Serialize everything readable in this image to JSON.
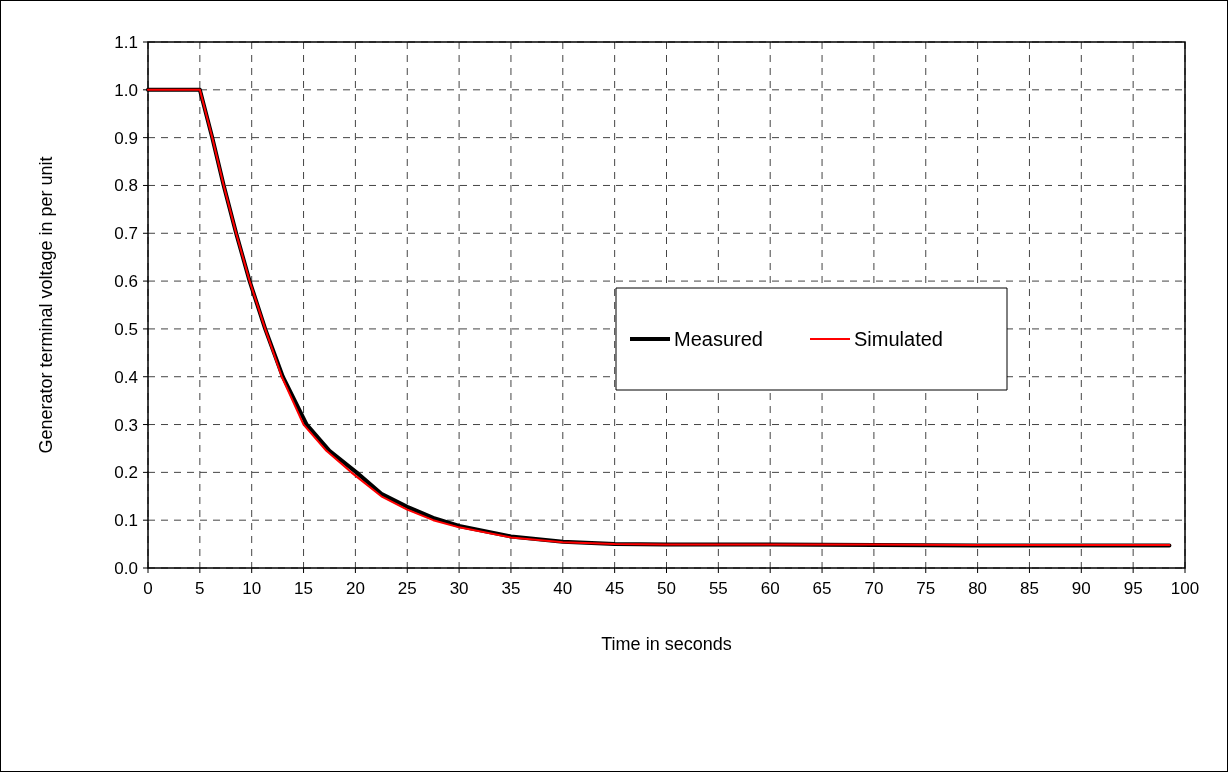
{
  "chart_data": {
    "type": "line",
    "xlabel": "Time in seconds",
    "ylabel": "Generator terminal voltage in per unit",
    "xlim": [
      0,
      100
    ],
    "ylim": [
      0,
      1.1
    ],
    "xticks": [
      0,
      5,
      10,
      15,
      20,
      25,
      30,
      35,
      40,
      45,
      50,
      55,
      60,
      65,
      70,
      75,
      80,
      85,
      90,
      95,
      100
    ],
    "yticks": [
      {
        "value": 0,
        "label": "0.0"
      },
      0.1,
      0.2,
      0.3,
      0.4,
      0.5,
      0.6,
      0.7,
      0.8,
      0.9,
      {
        "value": 1,
        "label": "1.0"
      },
      1.1
    ],
    "grid": true,
    "legend": "right",
    "line_style": "solid",
    "marker": "none",
    "series": [
      {
        "name": "Measured",
        "color": "#000000",
        "x": [
          0,
          5,
          6.2,
          7.3,
          8.5,
          9.8,
          11.3,
          13.0,
          15.3,
          17.5,
          20.1,
          22.5,
          25,
          27.5,
          30,
          35,
          40,
          45,
          50,
          60,
          70,
          80,
          90,
          98.5
        ],
        "values": [
          1.0,
          1.0,
          0.9,
          0.8,
          0.7,
          0.6,
          0.5,
          0.4,
          0.3,
          0.245,
          0.2,
          0.155,
          0.128,
          0.105,
          0.088,
          0.066,
          0.055,
          0.05,
          0.049,
          0.049,
          0.048,
          0.047,
          0.047,
          0.047
        ]
      },
      {
        "name": "Simulated",
        "color": "#ff0000",
        "x": [
          0,
          5,
          6.2,
          7.3,
          8.5,
          9.8,
          11.3,
          12.9,
          15.0,
          17.2,
          19.6,
          22.5,
          25,
          27.5,
          30,
          35,
          40,
          45,
          50,
          60,
          70,
          80,
          90,
          98.5
        ],
        "values": [
          1.0,
          1.0,
          0.9,
          0.8,
          0.7,
          0.6,
          0.5,
          0.4,
          0.3,
          0.245,
          0.2,
          0.15,
          0.122,
          0.1,
          0.085,
          0.064,
          0.054,
          0.05,
          0.049,
          0.049,
          0.049,
          0.048,
          0.048,
          0.048
        ]
      }
    ]
  }
}
